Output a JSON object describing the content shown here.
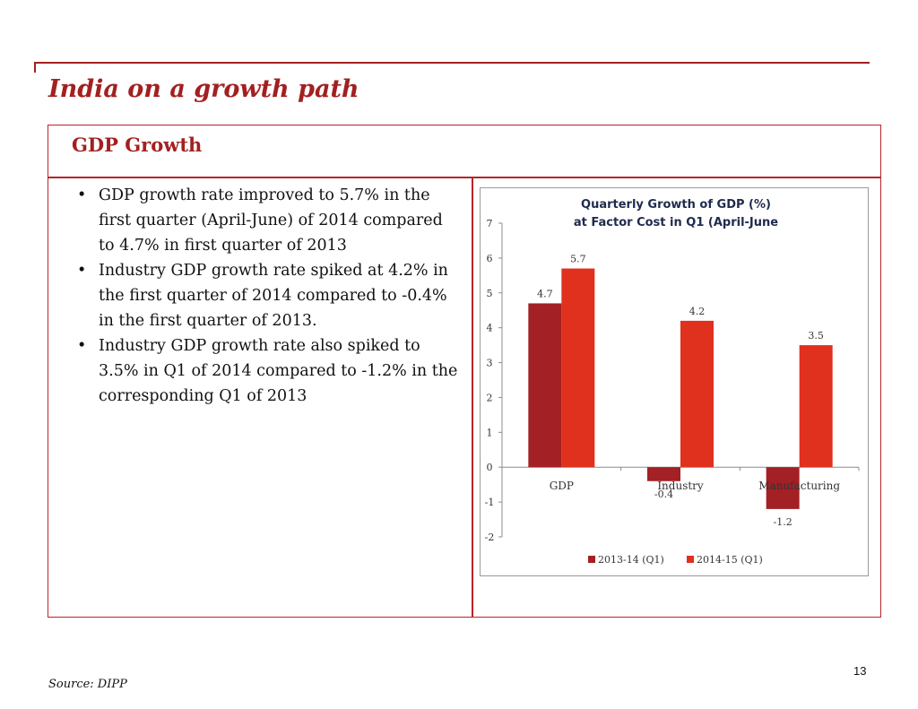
{
  "title": "India on a growth path",
  "section_title": "GDP Growth",
  "bullets": [
    "GDP growth rate improved to 5.7% in the first quarter (April-June) of 2014 compared to 4.7% in first quarter of 2013",
    "Industry GDP growth rate spiked at 4.2% in the first quarter of 2014 compared to -0.4% in the first quarter of 2013.",
    "Industry GDP growth rate also spiked to 3.5% in Q1 of 2014 compared to -1.2% in the corresponding Q1 of 2013"
  ],
  "page_number": "13",
  "source": "Source: DIPP",
  "colors": {
    "accent": "#a32020",
    "series_2013": "#a32024",
    "series_2014": "#e0301e"
  },
  "chart_data": {
    "type": "bar",
    "title_lines": [
      "Quarterly Growth of GDP (%)",
      "at Factor Cost in Q1 (April-June"
    ],
    "categories": [
      "GDP",
      "Industry",
      "Manufacturing"
    ],
    "series": [
      {
        "name": "2013-14 (Q1)",
        "values": [
          4.7,
          -0.4,
          -1.2
        ],
        "labels": [
          "4.7",
          "-0.4",
          "-1.2"
        ],
        "color": "#a32024"
      },
      {
        "name": "2014-15 (Q1)",
        "values": [
          5.7,
          4.2,
          3.5
        ],
        "labels": [
          "5.7",
          "4.2",
          "3.5"
        ],
        "color": "#e0301e"
      }
    ],
    "ylim": [
      -2,
      7
    ],
    "yticks": [
      7,
      6,
      5,
      4,
      3,
      2,
      1,
      0,
      -1,
      -2
    ],
    "grid": false,
    "legend": "bottom"
  }
}
